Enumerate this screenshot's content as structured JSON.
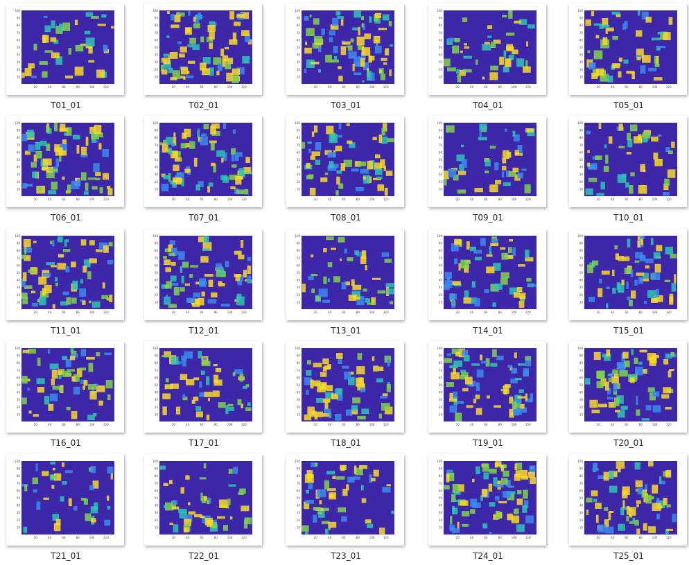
{
  "items": [
    {
      "label": "T01_01"
    },
    {
      "label": "T02_01"
    },
    {
      "label": "T03_01"
    },
    {
      "label": "T04_01"
    },
    {
      "label": "T05_01"
    },
    {
      "label": "T06_01"
    },
    {
      "label": "T07_01"
    },
    {
      "label": "T08_01"
    },
    {
      "label": "T09_01"
    },
    {
      "label": "T10_01"
    },
    {
      "label": "T11_01"
    },
    {
      "label": "T12_01"
    },
    {
      "label": "T13_01"
    },
    {
      "label": "T14_01"
    },
    {
      "label": "T15_01"
    },
    {
      "label": "T16_01"
    },
    {
      "label": "T17_01"
    },
    {
      "label": "T18_01"
    },
    {
      "label": "T19_01"
    },
    {
      "label": "T20_01"
    },
    {
      "label": "T21_01"
    },
    {
      "label": "T22_01"
    },
    {
      "label": "T23_01"
    },
    {
      "label": "T24_01"
    },
    {
      "label": "T25_01"
    }
  ],
  "thumbnail_axes": {
    "yticks": [
      100,
      90,
      80,
      70,
      60,
      50,
      40,
      30,
      20,
      10
    ],
    "xticks": [
      20,
      40,
      60,
      80,
      100,
      120
    ]
  }
}
